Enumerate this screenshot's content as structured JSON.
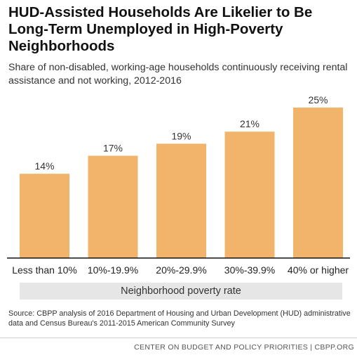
{
  "chart_data": {
    "type": "bar",
    "title": "HUD-Assisted Households Are Likelier to Be Long-Term Unemployed in High-Poverty Neighborhoods",
    "subtitle": "Share of non-disabled, working-age households continuously receiving rental assistance and not working, 2012-2016",
    "categories": [
      "Less than 10%",
      "10%-19.9%",
      "20%-29.9%",
      "30%-39.9%",
      "40% or higher"
    ],
    "values": [
      14,
      17,
      19,
      21,
      25
    ],
    "data_labels": [
      "14%",
      "17%",
      "19%",
      "21%",
      "25%"
    ],
    "unit": "%",
    "xlabel": "Neighborhood poverty rate",
    "ylabel": "",
    "ylim": [
      0,
      25
    ],
    "grid": false,
    "legend": "none",
    "bar_color": "#f2b46a"
  },
  "source": "Source: CBPP analysis of 2016 Department of Housing and Urban Development (HUD) administrative data and Census Bureau's 2011-2015 American Community Survey",
  "footer": "CENTER ON BUDGET AND POLICY PRIORITIES | CBPP.ORG",
  "colors": {
    "bar": "#f2b46a",
    "baseline": "#111111",
    "xlabel_band": "#e6e6e6"
  }
}
